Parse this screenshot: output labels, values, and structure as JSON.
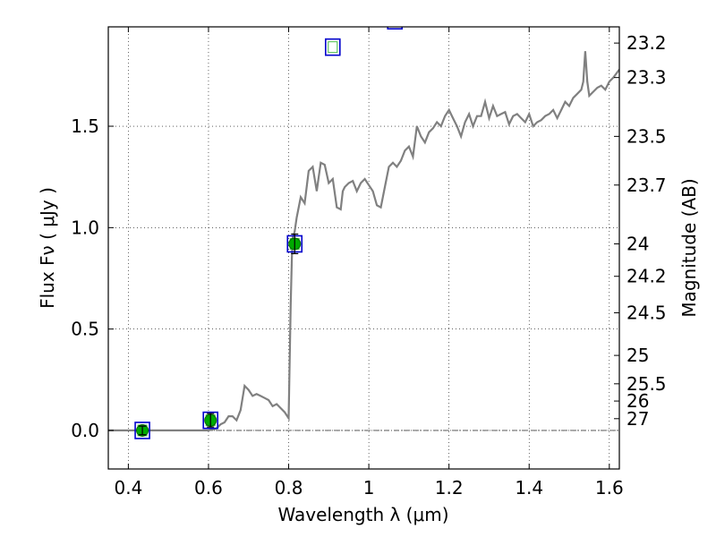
{
  "chart_data": {
    "type": "line",
    "xlabel": "Wavelength  λ (μm)",
    "ylabel": "Flux  Fν  ( μJy )",
    "y2label": "Magnitude (AB)",
    "xlim": [
      0.35,
      1.625
    ],
    "ylim": [
      -0.19,
      1.99
    ],
    "grid": true,
    "x_ticks": [
      {
        "value": 0.4,
        "label": "0.4"
      },
      {
        "value": 0.6,
        "label": "0.6"
      },
      {
        "value": 0.8,
        "label": "0.8"
      },
      {
        "value": 1.0,
        "label": "1"
      },
      {
        "value": 1.2,
        "label": "1.2"
      },
      {
        "value": 1.4,
        "label": "1.4"
      },
      {
        "value": 1.6,
        "label": "1.6"
      }
    ],
    "y_ticks": [
      {
        "value": 0.0,
        "label": "0.0"
      },
      {
        "value": 0.5,
        "label": "0.5"
      },
      {
        "value": 1.0,
        "label": "1.0"
      },
      {
        "value": 1.5,
        "label": "1.5"
      }
    ],
    "magnitude_ticks": [
      {
        "flux": 1.91,
        "label": "23.2"
      },
      {
        "flux": 1.74,
        "label": "23.3"
      },
      {
        "flux": 1.45,
        "label": "23.5"
      },
      {
        "flux": 1.21,
        "label": "23.7"
      },
      {
        "flux": 0.92,
        "label": "24"
      },
      {
        "flux": 0.76,
        "label": "24.2"
      },
      {
        "flux": 0.58,
        "label": "24.5"
      },
      {
        "flux": 0.37,
        "label": "25"
      },
      {
        "flux": 0.23,
        "label": "25.5"
      },
      {
        "flux": 0.145,
        "label": "26"
      },
      {
        "flux": 0.058,
        "label": "27"
      }
    ],
    "spectrum": {
      "color": "#808080",
      "x": [
        0.35,
        0.6,
        0.62,
        0.63,
        0.64,
        0.65,
        0.66,
        0.67,
        0.68,
        0.69,
        0.7,
        0.71,
        0.72,
        0.73,
        0.74,
        0.75,
        0.76,
        0.77,
        0.78,
        0.79,
        0.8,
        0.805,
        0.808,
        0.81,
        0.815,
        0.82,
        0.83,
        0.84,
        0.85,
        0.86,
        0.87,
        0.875,
        0.88,
        0.89,
        0.9,
        0.91,
        0.92,
        0.93,
        0.935,
        0.94,
        0.95,
        0.96,
        0.97,
        0.98,
        0.99,
        1.0,
        1.01,
        1.02,
        1.03,
        1.04,
        1.05,
        1.06,
        1.07,
        1.08,
        1.09,
        1.1,
        1.11,
        1.12,
        1.13,
        1.14,
        1.15,
        1.16,
        1.17,
        1.18,
        1.19,
        1.2,
        1.21,
        1.22,
        1.23,
        1.24,
        1.25,
        1.26,
        1.27,
        1.28,
        1.29,
        1.3,
        1.31,
        1.32,
        1.33,
        1.34,
        1.35,
        1.36,
        1.37,
        1.38,
        1.39,
        1.4,
        1.41,
        1.42,
        1.43,
        1.44,
        1.45,
        1.46,
        1.47,
        1.48,
        1.49,
        1.5,
        1.51,
        1.52,
        1.53,
        1.535,
        1.54,
        1.545,
        1.55,
        1.56,
        1.57,
        1.58,
        1.59,
        1.6,
        1.61,
        1.625
      ],
      "y": [
        0.0,
        0.0,
        0.01,
        0.03,
        0.04,
        0.07,
        0.07,
        0.05,
        0.1,
        0.22,
        0.2,
        0.17,
        0.18,
        0.17,
        0.16,
        0.15,
        0.12,
        0.13,
        0.11,
        0.09,
        0.06,
        0.62,
        0.85,
        0.95,
        0.98,
        1.05,
        1.15,
        1.12,
        1.28,
        1.3,
        1.18,
        1.25,
        1.32,
        1.31,
        1.22,
        1.24,
        1.1,
        1.09,
        1.18,
        1.2,
        1.22,
        1.23,
        1.18,
        1.22,
        1.24,
        1.21,
        1.18,
        1.11,
        1.1,
        1.2,
        1.3,
        1.32,
        1.3,
        1.33,
        1.38,
        1.4,
        1.35,
        1.5,
        1.45,
        1.42,
        1.47,
        1.49,
        1.52,
        1.5,
        1.55,
        1.58,
        1.54,
        1.5,
        1.45,
        1.52,
        1.56,
        1.5,
        1.55,
        1.55,
        1.62,
        1.54,
        1.6,
        1.55,
        1.56,
        1.57,
        1.51,
        1.55,
        1.56,
        1.54,
        1.52,
        1.56,
        1.5,
        1.52,
        1.53,
        1.55,
        1.56,
        1.58,
        1.54,
        1.58,
        1.62,
        1.6,
        1.64,
        1.66,
        1.68,
        1.72,
        1.87,
        1.72,
        1.65,
        1.67,
        1.69,
        1.7,
        1.68,
        1.72,
        1.74,
        1.78
      ]
    },
    "photometry_boxes": {
      "color": "#0000cc",
      "x": [
        0.435,
        0.605,
        0.815,
        0.91,
        1.065
      ],
      "y": [
        0.0,
        0.05,
        0.92,
        1.89,
        2.02
      ]
    },
    "measured_points": {
      "color": "#00aa00",
      "x": [
        0.435,
        0.605,
        0.815
      ],
      "y": [
        0.0,
        0.05,
        0.92
      ],
      "yerr": [
        0.008,
        0.02,
        0.035
      ]
    }
  }
}
